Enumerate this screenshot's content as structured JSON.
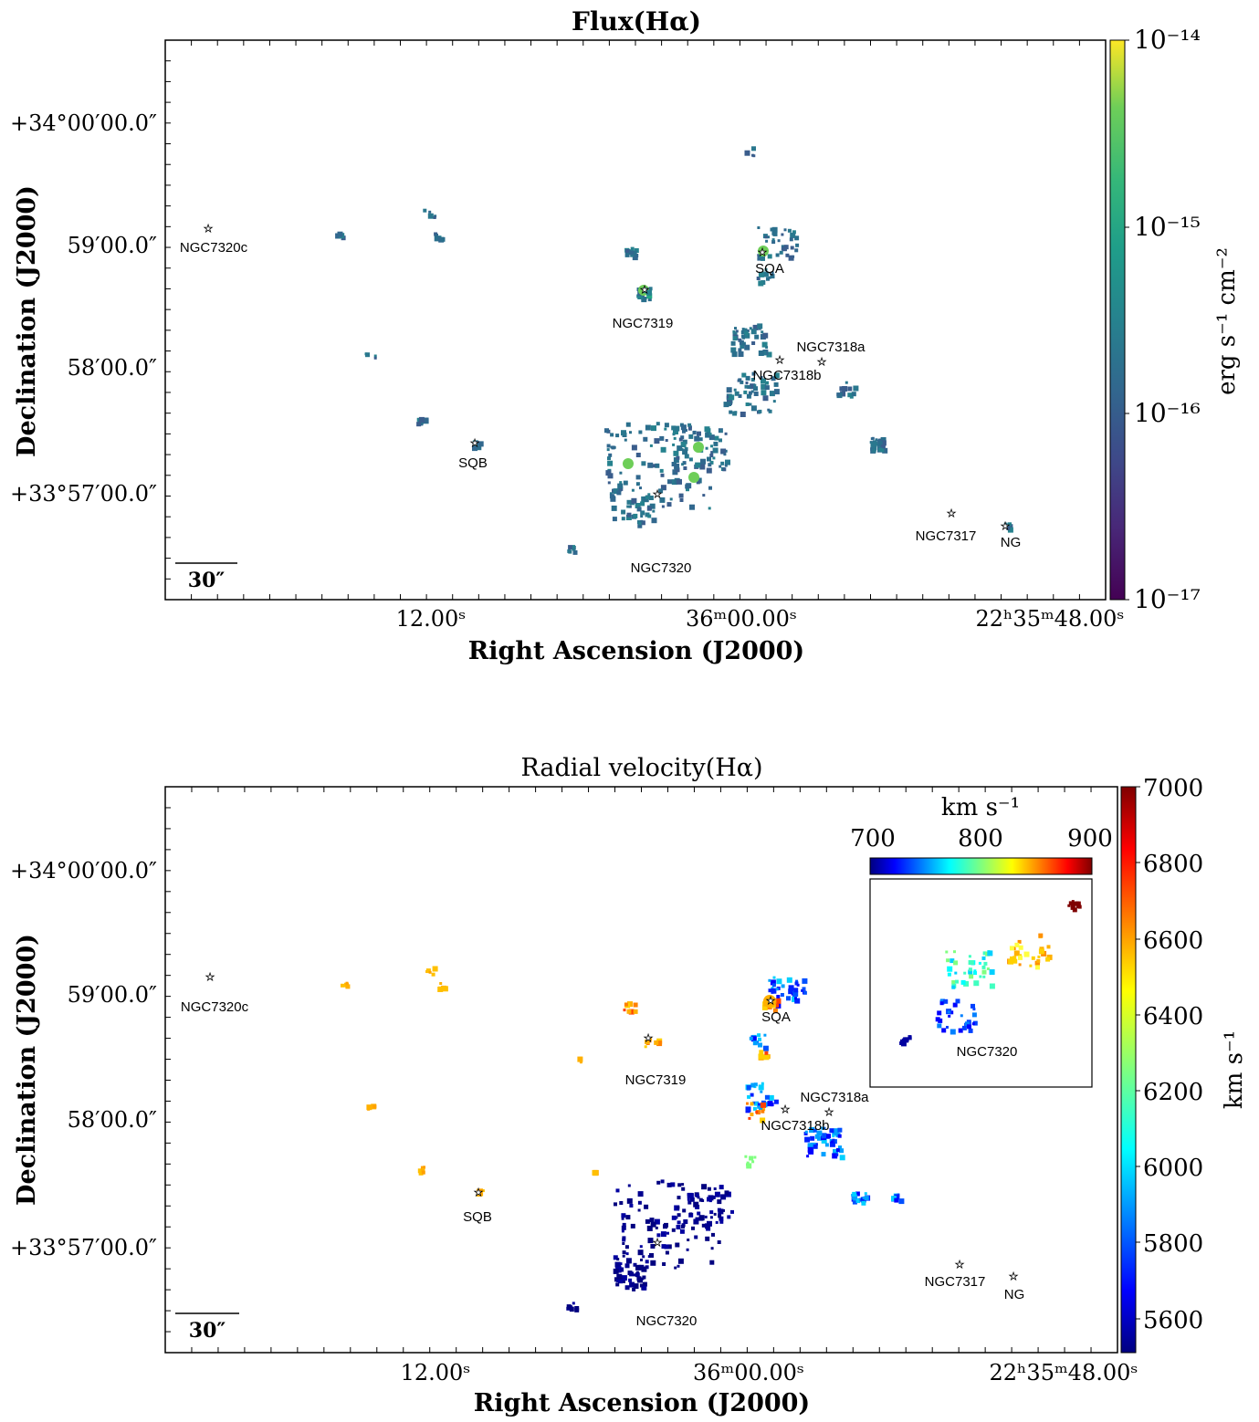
{
  "chart_data": [
    {
      "type": "heatmap",
      "title": "Flux(Hα)",
      "xlabel": "Right Ascension (J2000)",
      "ylabel": "Declination (J2000)",
      "x_ticks": [
        "12.00ˢ",
        "36ᵐ00.00ˢ",
        "22ʰ35ᵐ48.00ˢ"
      ],
      "y_ticks": [
        "+34°00′00.0″",
        "59′00.0″",
        "58′00.0″",
        "+33°57′00.0″"
      ],
      "colorbar": {
        "label": "erg s⁻¹ cm⁻²",
        "scale": "log",
        "range": [
          1e-17,
          1e-14
        ],
        "ticks": [
          "10⁻¹⁴",
          "10⁻¹⁵",
          "10⁻¹⁶",
          "10⁻¹⁷"
        ],
        "colormap": "viridis"
      },
      "scale_bar": "30″",
      "sources": [
        "NGC7320c",
        "SQA",
        "NGC7319",
        "NGC7318a",
        "NGC7318b",
        "SQB",
        "NGC7320",
        "NGC7317",
        "NG"
      ]
    },
    {
      "type": "heatmap",
      "title": "Radial velocity(Hα)",
      "xlabel": "Right Ascension (J2000)",
      "ylabel": "Declination (J2000)",
      "x_ticks": [
        "12.00ˢ",
        "36ᵐ00.00ˢ",
        "22ʰ35ᵐ48.00ˢ"
      ],
      "y_ticks": [
        "+34°00′00.0″",
        "59′00.0″",
        "58′00.0″",
        "+33°57′00.0″"
      ],
      "colorbar": {
        "label": "km s⁻¹",
        "range": [
          5500,
          7000
        ],
        "ticks": [
          7000,
          6800,
          6600,
          6400,
          6200,
          6000,
          5800,
          5600
        ],
        "colormap": "jet"
      },
      "inset": {
        "colorbar_label": "km s⁻¹",
        "range": [
          700,
          900
        ],
        "ticks": [
          700,
          800,
          900
        ],
        "colormap": "jet",
        "label": "NGC7320"
      },
      "scale_bar": "30″",
      "sources": [
        "NGC7320c",
        "SQA",
        "NGC7319",
        "NGC7318a",
        "NGC7318b",
        "SQB",
        "NGC7320",
        "NGC7317",
        "NG"
      ]
    }
  ]
}
